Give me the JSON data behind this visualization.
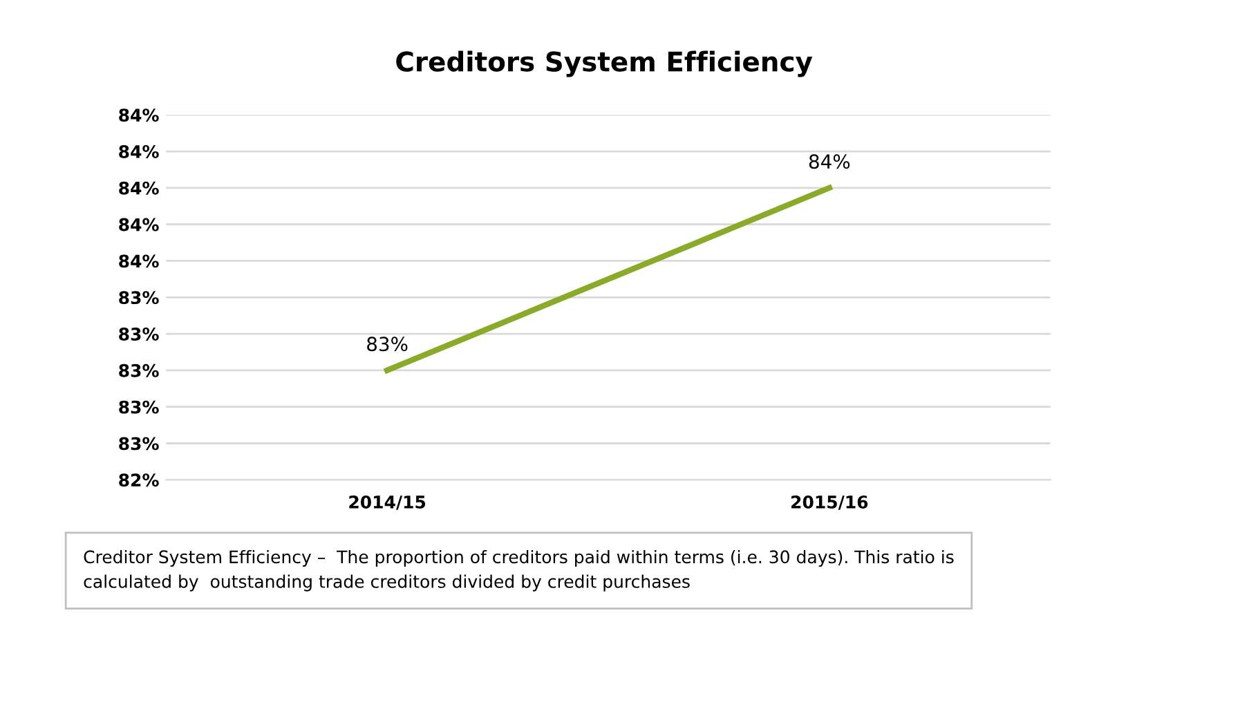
{
  "chart_data": {
    "type": "line",
    "title": "Creditors System Efficiency",
    "categories": [
      "2014/15",
      "2015/16"
    ],
    "series": [
      {
        "color": "#8aaa2a",
        "values": [
          83,
          84
        ],
        "value_labels": [
          "83%",
          "84%"
        ]
      }
    ],
    "ylim": [
      82.4,
      84.4
    ],
    "yticks": [
      {
        "value": 82.4,
        "label": "82%"
      },
      {
        "value": 82.6,
        "label": "83%"
      },
      {
        "value": 82.8,
        "label": "83%"
      },
      {
        "value": 83.0,
        "label": "83%"
      },
      {
        "value": 83.2,
        "label": "83%"
      },
      {
        "value": 83.4,
        "label": "83%"
      },
      {
        "value": 83.6,
        "label": "84%"
      },
      {
        "value": 83.8,
        "label": "84%"
      },
      {
        "value": 84.0,
        "label": "84%"
      },
      {
        "value": 84.2,
        "label": "84%"
      },
      {
        "value": 84.4,
        "label": "84%"
      }
    ],
    "grid": "y",
    "marker": "none",
    "line_style": "solid",
    "legend": false,
    "annotations": [
      "Creditor System Efficiency –  The proportion of creditors paid within terms (i.e. 30 days). This ratio is\ncalculated by  outstanding trade creditors divided by credit purchases"
    ]
  }
}
